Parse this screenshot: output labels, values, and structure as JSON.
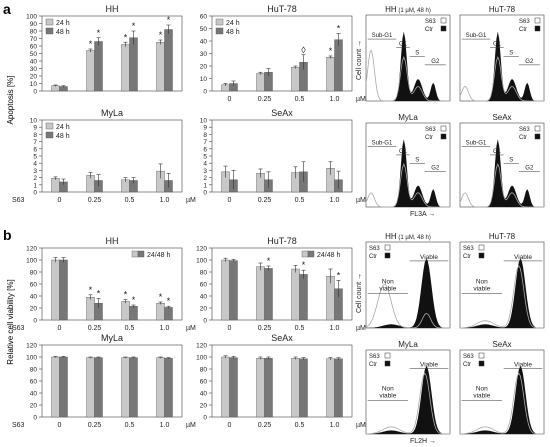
{
  "figure": {
    "panel_labels": [
      "a",
      "b"
    ],
    "bottom_xlabel": "S63",
    "xunit": "µM",
    "flow_xlabels": {
      "a": "FL3A",
      "b": "FL2H"
    },
    "flow_ylabel": "Cell count"
  },
  "legends": {
    "time_24": "24 h",
    "time_48": "48 h",
    "combined": "24/48 h",
    "flow_s63": "S63",
    "flow_ctr": "Ctr"
  },
  "flow_labels": {
    "cycle": [
      "Sub-G1",
      "G1",
      "S",
      "G2"
    ],
    "viable": "Viable",
    "nonviable": "Non viable"
  },
  "colors": {
    "bar_light": "#c8c8c8",
    "bar_dark": "#777777",
    "flow_ctr": "#111111",
    "flow_s63": "#aaaaaa"
  },
  "chart_data": [
    {
      "type": "bar",
      "id": "a-hh",
      "title": "HH",
      "ylabel": "Apoptosis [%]",
      "categories": [
        "0",
        "0.25",
        "0.5",
        "1.0"
      ],
      "ylim": [
        0,
        100
      ],
      "yticks": [
        0,
        10,
        20,
        30,
        40,
        50,
        60,
        70,
        80,
        90,
        100
      ],
      "series": [
        {
          "name": "24 h",
          "values": [
            7,
            54,
            62,
            65
          ],
          "errors": [
            1,
            2,
            3,
            3
          ]
        },
        {
          "name": "48 h",
          "values": [
            6,
            66,
            71,
            82
          ],
          "errors": [
            1,
            5,
            9,
            6
          ]
        }
      ],
      "annotations": [
        {
          "category": "0.25",
          "series": 0,
          "text": "*"
        },
        {
          "category": "0.25",
          "series": 1,
          "text": "*"
        },
        {
          "category": "0.5",
          "series": 0,
          "text": "*"
        },
        {
          "category": "0.5",
          "series": 1,
          "text": "*"
        },
        {
          "category": "1.0",
          "series": 0,
          "text": "*"
        },
        {
          "category": "1.0",
          "series": 1,
          "text": "*"
        }
      ]
    },
    {
      "type": "bar",
      "id": "a-hut78",
      "title": "HuT-78",
      "categories": [
        "0",
        "0.25",
        "0.5",
        "1.0"
      ],
      "ylim": [
        0,
        60
      ],
      "yticks": [
        0,
        10,
        20,
        30,
        40,
        50,
        60
      ],
      "series": [
        {
          "name": "24 h",
          "values": [
            5,
            14,
            19,
            27
          ],
          "errors": [
            1,
            1,
            1,
            1
          ]
        },
        {
          "name": "48 h",
          "values": [
            6,
            15,
            23,
            41
          ],
          "errors": [
            2,
            3,
            6,
            5
          ]
        }
      ],
      "annotations": [
        {
          "category": "0.5",
          "series": 1,
          "text": "◊"
        },
        {
          "category": "1.0",
          "series": 0,
          "text": "*"
        },
        {
          "category": "1.0",
          "series": 1,
          "text": "*"
        }
      ]
    },
    {
      "type": "bar",
      "id": "a-myla",
      "title": "MyLa",
      "categories": [
        "0",
        "0.25",
        "0.5",
        "1.0"
      ],
      "ylim": [
        0,
        10
      ],
      "yticks": [
        0,
        1,
        2,
        3,
        4,
        5,
        6,
        7,
        8,
        9,
        10
      ],
      "series": [
        {
          "name": "24 h",
          "values": [
            1.9,
            2.3,
            1.7,
            2.9
          ],
          "errors": [
            0.2,
            0.4,
            0.3,
            1.0
          ]
        },
        {
          "name": "48 h",
          "values": [
            1.4,
            1.6,
            1.6,
            1.6
          ],
          "errors": [
            0.4,
            0.8,
            0.4,
            1.0
          ]
        }
      ]
    },
    {
      "type": "bar",
      "id": "a-seax",
      "title": "SeAx",
      "categories": [
        "0",
        "0.25",
        "0.5",
        "1.0"
      ],
      "ylim": [
        0,
        10
      ],
      "yticks": [
        0,
        1,
        2,
        3,
        4,
        5,
        6,
        7,
        8,
        9,
        10
      ],
      "series": [
        {
          "name": "24 h",
          "values": [
            2.8,
            2.6,
            2.7,
            3.3
          ],
          "errors": [
            0.8,
            0.6,
            0.8,
            0.9
          ]
        },
        {
          "name": "48 h",
          "values": [
            1.7,
            1.7,
            2.8,
            1.7
          ],
          "errors": [
            1.3,
            1.1,
            1.4,
            1.2
          ]
        }
      ]
    },
    {
      "type": "bar",
      "id": "b-hh",
      "title": "HH",
      "ylabel": "Relative cell viability [%]",
      "categories": [
        "0",
        "0.25",
        "0.5",
        "1.0"
      ],
      "ylim": [
        0,
        120
      ],
      "yticks": [
        0,
        20,
        40,
        60,
        80,
        100,
        120
      ],
      "series": [
        {
          "name": "24 h",
          "values": [
            100,
            38,
            31,
            28
          ],
          "errors": [
            4,
            4,
            3,
            2
          ]
        },
        {
          "name": "48 h",
          "values": [
            100,
            28,
            23,
            21
          ],
          "errors": [
            4,
            8,
            2,
            2
          ]
        }
      ],
      "annotations": [
        {
          "category": "0.25",
          "series": 0,
          "text": "*"
        },
        {
          "category": "0.25",
          "series": 1,
          "text": "*"
        },
        {
          "category": "0.5",
          "series": 0,
          "text": "*"
        },
        {
          "category": "0.5",
          "series": 1,
          "text": "*"
        },
        {
          "category": "1.0",
          "series": 0,
          "text": "*"
        },
        {
          "category": "1.0",
          "series": 1,
          "text": "*"
        }
      ]
    },
    {
      "type": "bar",
      "id": "b-hut78",
      "title": "HuT-78",
      "categories": [
        "0",
        "0.25",
        "0.5",
        "1.0"
      ],
      "ylim": [
        0,
        120
      ],
      "yticks": [
        0,
        20,
        40,
        60,
        80,
        100,
        120
      ],
      "series": [
        {
          "name": "24 h",
          "values": [
            100,
            89,
            85,
            73
          ],
          "errors": [
            3,
            6,
            6,
            12
          ]
        },
        {
          "name": "48 h",
          "values": [
            99,
            86,
            76,
            52
          ],
          "errors": [
            2,
            4,
            7,
            14
          ]
        }
      ],
      "annotations": [
        {
          "category": "0.25",
          "series": 1,
          "text": "*"
        },
        {
          "category": "0.5",
          "series": 1,
          "text": "*"
        },
        {
          "category": "1.0",
          "series": 1,
          "text": "*"
        }
      ]
    },
    {
      "type": "bar",
      "id": "b-myla",
      "title": "MyLa",
      "categories": [
        "0",
        "0.25",
        "0.5",
        "1.0"
      ],
      "ylim": [
        0,
        120
      ],
      "yticks": [
        0,
        20,
        40,
        60,
        80,
        100,
        120
      ],
      "series": [
        {
          "name": "24 h",
          "values": [
            100,
            99,
            99,
            99
          ],
          "errors": [
            1,
            1,
            1,
            1
          ]
        },
        {
          "name": "48 h",
          "values": [
            100,
            99,
            99,
            98
          ],
          "errors": [
            1,
            1,
            1,
            1
          ]
        }
      ]
    },
    {
      "type": "bar",
      "id": "b-seax",
      "title": "SeAx",
      "categories": [
        "0",
        "0.25",
        "0.5",
        "1.0"
      ],
      "ylim": [
        0,
        120
      ],
      "yticks": [
        0,
        20,
        40,
        60,
        80,
        100,
        120
      ],
      "series": [
        {
          "name": "24 h",
          "values": [
            100,
            98,
            98,
            97
          ],
          "errors": [
            2,
            2,
            2,
            2
          ]
        },
        {
          "name": "48 h",
          "values": [
            99,
            98,
            97,
            97
          ],
          "errors": [
            2,
            2,
            2,
            2
          ]
        }
      ]
    }
  ],
  "flow_panels": [
    {
      "id": "fa-hh",
      "title": "HH",
      "subtitle": "(1 µM, 48 h)",
      "kind": "cycle"
    },
    {
      "id": "fa-hut78",
      "title": "HuT-78",
      "kind": "cycle"
    },
    {
      "id": "fa-myla",
      "title": "MyLa",
      "kind": "cycle"
    },
    {
      "id": "fa-seax",
      "title": "SeAx",
      "kind": "cycle"
    },
    {
      "id": "fb-hh",
      "title": "HH",
      "subtitle": "(1 µM, 48 h)",
      "kind": "viab"
    },
    {
      "id": "fb-hut78",
      "title": "HuT-78",
      "kind": "viab"
    },
    {
      "id": "fb-myla",
      "title": "MyLa",
      "kind": "viab"
    },
    {
      "id": "fb-seax",
      "title": "SeAx",
      "kind": "viab"
    }
  ]
}
